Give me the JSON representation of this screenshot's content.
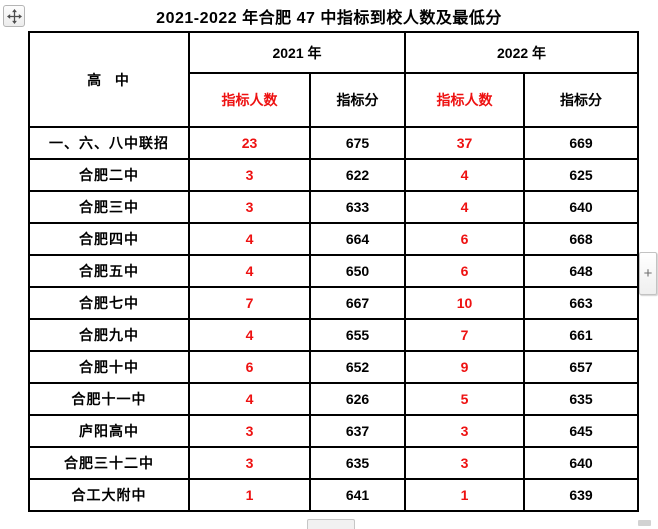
{
  "header": {
    "title": "2021-2022 年合肥 47 中指标到校人数及最低分"
  },
  "controls": {
    "move_handle_icon": "move-icon",
    "plus_button_label": "+"
  },
  "colors": {
    "accent_red": "#ee1111",
    "text_black": "#000000",
    "table_border": "#000000"
  },
  "table": {
    "corner_header": "高  中",
    "year_columns": [
      {
        "year": "2021 年",
        "quota_header": "指标人数",
        "score_header": "指标分"
      },
      {
        "year": "2022 年",
        "quota_header": "指标人数",
        "score_header": "指标分"
      }
    ],
    "rows": [
      {
        "school": "一、六、八中联招",
        "values": [
          "23",
          "675",
          "37",
          "669"
        ]
      },
      {
        "school": "合肥二中",
        "values": [
          "3",
          "622",
          "4",
          "625"
        ]
      },
      {
        "school": "合肥三中",
        "values": [
          "3",
          "633",
          "4",
          "640"
        ]
      },
      {
        "school": "合肥四中",
        "values": [
          "4",
          "664",
          "6",
          "668"
        ]
      },
      {
        "school": "合肥五中",
        "values": [
          "4",
          "650",
          "6",
          "648"
        ]
      },
      {
        "school": "合肥七中",
        "values": [
          "7",
          "667",
          "10",
          "663"
        ]
      },
      {
        "school": "合肥九中",
        "values": [
          "4",
          "655",
          "7",
          "661"
        ]
      },
      {
        "school": "合肥十中",
        "values": [
          "6",
          "652",
          "9",
          "657"
        ]
      },
      {
        "school": "合肥十一中",
        "values": [
          "4",
          "626",
          "5",
          "635"
        ]
      },
      {
        "school": "庐阳高中",
        "values": [
          "3",
          "637",
          "3",
          "645"
        ]
      },
      {
        "school": "合肥三十二中",
        "values": [
          "3",
          "635",
          "3",
          "640"
        ]
      },
      {
        "school": "合工大附中",
        "values": [
          "1",
          "641",
          "1",
          "639"
        ]
      }
    ]
  }
}
